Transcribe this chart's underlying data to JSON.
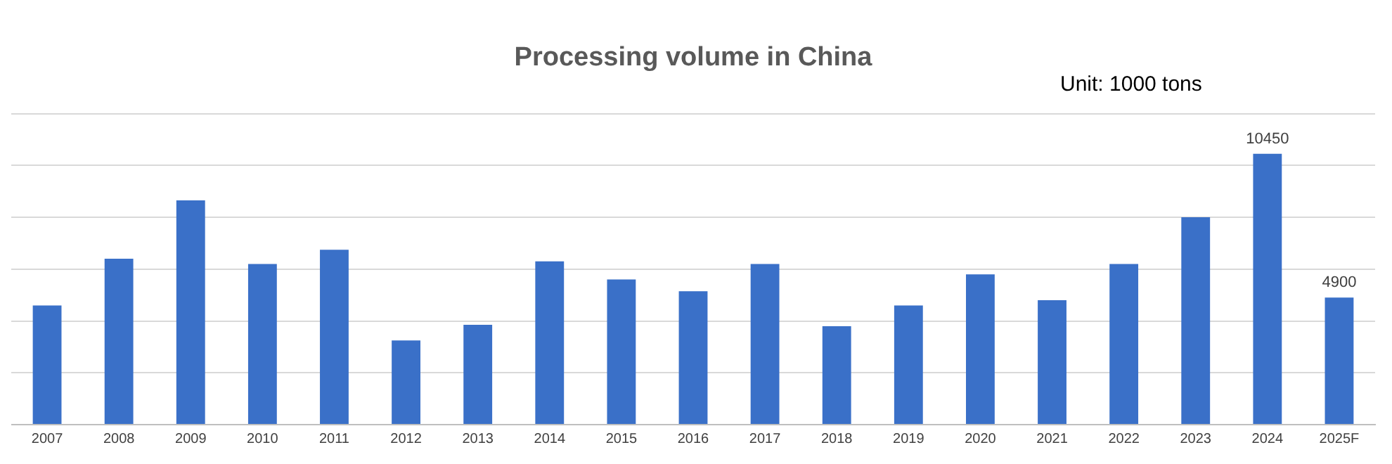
{
  "chart_data": {
    "type": "bar",
    "title": "Processing volume in China",
    "annotations": [
      "Unit: 1000 tons"
    ],
    "categories": [
      "2007",
      "2008",
      "2009",
      "2010",
      "2011",
      "2012",
      "2013",
      "2014",
      "2015",
      "2016",
      "2017",
      "2018",
      "2019",
      "2020",
      "2021",
      "2022",
      "2023",
      "2024",
      "2025F"
    ],
    "values": [
      4600,
      6400,
      8650,
      6200,
      6750,
      3250,
      3850,
      6300,
      5600,
      5150,
      6200,
      3800,
      4600,
      5800,
      4800,
      6200,
      8000,
      10450,
      4900
    ],
    "value_labels": [
      null,
      null,
      null,
      null,
      null,
      null,
      null,
      null,
      null,
      null,
      null,
      null,
      null,
      null,
      null,
      null,
      null,
      "10450",
      "4900"
    ],
    "color": "#3a70c8",
    "ylim": [
      0,
      12000
    ],
    "yticks": [
      {
        "value": 0,
        "label": null
      },
      {
        "value": 2000,
        "label": null
      },
      {
        "value": 4000,
        "label": null
      },
      {
        "value": 6000,
        "label": null
      },
      {
        "value": 8000,
        "label": null
      },
      {
        "value": 10000,
        "label": null
      },
      {
        "value": 12000,
        "label": null
      }
    ],
    "tick_labels": "x",
    "grid": "y",
    "legend": false
  }
}
